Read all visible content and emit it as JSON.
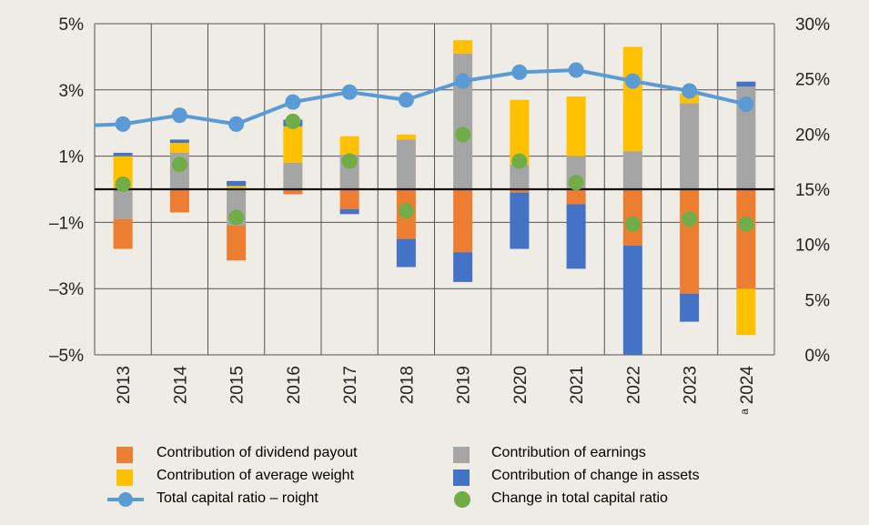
{
  "chart_data": {
    "type": "bar",
    "categories": [
      "2013",
      "2014",
      "2015",
      "2016",
      "2017",
      "2018",
      "2019",
      "2020",
      "2021",
      "2022",
      "2023",
      "2024"
    ],
    "category_superscript": {
      "index": 11,
      "text": "a"
    },
    "left_axis": {
      "ylim": [
        -5,
        5
      ],
      "ticks": [
        "5%",
        "3%",
        "1%",
        "–1%",
        "–3%",
        "–5%"
      ],
      "tick_values": [
        5,
        3,
        1,
        -1,
        -3,
        -5
      ]
    },
    "right_axis": {
      "ylim": [
        0,
        30
      ],
      "ticks": [
        "30%",
        "25%",
        "20%",
        "15%",
        "10%",
        "5%",
        "0%"
      ],
      "tick_values": [
        30,
        25,
        20,
        15,
        10,
        5,
        0
      ]
    },
    "stacked_series": [
      {
        "name": "Contribution of earnings",
        "color": "#a5a5a5",
        "values": [
          -0.9,
          1.1,
          -1.1,
          0.8,
          1.05,
          1.5,
          4.1,
          0.75,
          1.0,
          1.15,
          2.6,
          3.1
        ]
      },
      {
        "name": "Contribution of dividend payout",
        "color": "#ed7d31",
        "values": [
          -0.9,
          -0.7,
          -1.05,
          -0.15,
          -0.6,
          -1.5,
          -1.9,
          -0.1,
          -0.45,
          -1.7,
          -3.15,
          -3.0
        ]
      },
      {
        "name": "Contribution of average weight",
        "color": "#ffc000",
        "values": [
          1.0,
          0.3,
          0.1,
          1.1,
          0.55,
          0.15,
          0.4,
          1.95,
          1.8,
          3.15,
          0.3,
          -1.4
        ]
      },
      {
        "name": "Contribution of change in assets",
        "color": "#4472c4",
        "values": [
          0.1,
          0.1,
          0.15,
          0.2,
          -0.15,
          -0.85,
          -0.9,
          -1.7,
          -1.95,
          -3.3,
          -0.85,
          0.15
        ]
      }
    ],
    "line_series": {
      "name": "Total capital ratio – roight",
      "axis": "right",
      "color": "#5b9bd5",
      "values": [
        20.9,
        21.7,
        20.9,
        22.9,
        23.8,
        23.1,
        24.8,
        25.6,
        25.8,
        24.8,
        23.9,
        22.7
      ]
    },
    "dot_series": {
      "name": "Change in total capital ratio",
      "axis": "left",
      "color": "#70ad47",
      "values": [
        0.15,
        0.75,
        -0.85,
        2.05,
        0.85,
        -0.65,
        1.65,
        0.85,
        0.2,
        -1.05,
        -0.9,
        -1.05
      ]
    },
    "legend": {
      "left": [
        "Contribution of dividend payout",
        "Contribution of average weight",
        "Total capital ratio – roight"
      ],
      "right": [
        "Contribution of earnings",
        "Contribution of change in assets",
        "Change in total capital ratio"
      ]
    },
    "grid": true,
    "legend_placement": "bottom"
  }
}
